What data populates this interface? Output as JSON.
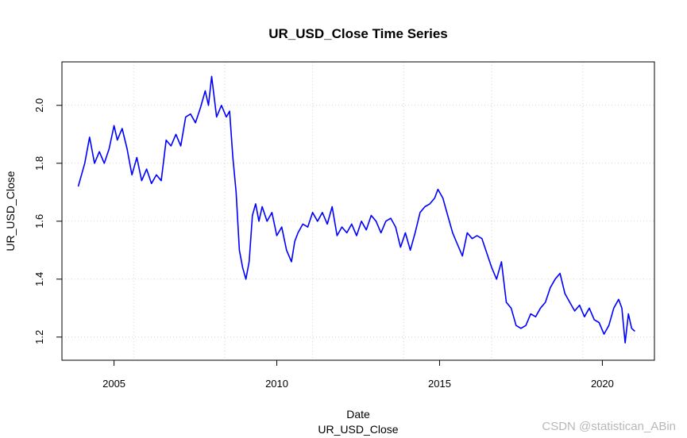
{
  "chart_data": {
    "type": "line",
    "title": "UR_USD_Close Time Series",
    "xlabel": "Date",
    "xlabel_sub": "UR_USD_Close",
    "ylabel": "UR_USD_Close",
    "xlim": [
      2003.4,
      2021.6
    ],
    "ylim": [
      1.12,
      2.15
    ],
    "x_ticks": [
      2005,
      2010,
      2015,
      2020
    ],
    "y_ticks": [
      1.2,
      1.4,
      1.6,
      1.8,
      2.0
    ],
    "x_grid": [
      2005.6,
      2008.4,
      2011.1,
      2013.9,
      2016.6,
      2019.4
    ],
    "y_grid": [
      1.2,
      1.4,
      1.6,
      1.8,
      2.0
    ],
    "grid": true,
    "line_color": "#0000ff",
    "series": [
      {
        "x": [
          2003.9,
          2004.1,
          2004.25,
          2004.4,
          2004.55,
          2004.7,
          2004.85,
          2005.0,
          2005.1,
          2005.25,
          2005.4,
          2005.55,
          2005.7,
          2005.85,
          2006.0,
          2006.15,
          2006.3,
          2006.45,
          2006.6,
          2006.75,
          2006.9,
          2007.05,
          2007.2,
          2007.35,
          2007.5,
          2007.65,
          2007.8,
          2007.9,
          2008.0,
          2008.15,
          2008.3,
          2008.45,
          2008.55,
          2008.65,
          2008.75,
          2008.85,
          2008.95,
          2009.05,
          2009.15,
          2009.25,
          2009.35,
          2009.45,
          2009.55,
          2009.7,
          2009.85,
          2010.0,
          2010.15,
          2010.3,
          2010.45,
          2010.55,
          2010.65,
          2010.8,
          2010.95,
          2011.1,
          2011.25,
          2011.4,
          2011.55,
          2011.7,
          2011.85,
          2012.0,
          2012.15,
          2012.3,
          2012.45,
          2012.6,
          2012.75,
          2012.9,
          2013.05,
          2013.2,
          2013.35,
          2013.5,
          2013.65,
          2013.8,
          2013.95,
          2014.1,
          2014.25,
          2014.4,
          2014.55,
          2014.7,
          2014.85,
          2014.95,
          2015.1,
          2015.25,
          2015.4,
          2015.55,
          2015.7,
          2015.85,
          2016.0,
          2016.15,
          2016.3,
          2016.45,
          2016.6,
          2016.75,
          2016.9,
          2017.05,
          2017.2,
          2017.35,
          2017.5,
          2017.65,
          2017.8,
          2017.95,
          2018.1,
          2018.25,
          2018.4,
          2018.55,
          2018.7,
          2018.85,
          2019.0,
          2019.15,
          2019.3,
          2019.45,
          2019.6,
          2019.75,
          2019.9,
          2020.05,
          2020.2,
          2020.35,
          2020.5,
          2020.6,
          2020.7,
          2020.8,
          2020.9,
          2021.0
        ],
        "y": [
          1.72,
          1.8,
          1.89,
          1.8,
          1.84,
          1.8,
          1.85,
          1.93,
          1.88,
          1.92,
          1.85,
          1.76,
          1.82,
          1.74,
          1.78,
          1.73,
          1.76,
          1.74,
          1.88,
          1.86,
          1.9,
          1.86,
          1.96,
          1.97,
          1.94,
          1.99,
          2.05,
          2.0,
          2.1,
          1.96,
          2.0,
          1.96,
          1.98,
          1.82,
          1.7,
          1.5,
          1.44,
          1.4,
          1.46,
          1.62,
          1.66,
          1.6,
          1.65,
          1.6,
          1.63,
          1.55,
          1.58,
          1.5,
          1.46,
          1.53,
          1.56,
          1.59,
          1.58,
          1.63,
          1.6,
          1.63,
          1.59,
          1.65,
          1.55,
          1.58,
          1.56,
          1.59,
          1.55,
          1.6,
          1.57,
          1.62,
          1.6,
          1.56,
          1.6,
          1.61,
          1.58,
          1.51,
          1.56,
          1.5,
          1.56,
          1.63,
          1.65,
          1.66,
          1.68,
          1.71,
          1.68,
          1.62,
          1.56,
          1.52,
          1.48,
          1.56,
          1.54,
          1.55,
          1.54,
          1.49,
          1.44,
          1.4,
          1.46,
          1.32,
          1.3,
          1.24,
          1.23,
          1.24,
          1.28,
          1.27,
          1.3,
          1.32,
          1.37,
          1.4,
          1.42,
          1.35,
          1.32,
          1.29,
          1.31,
          1.27,
          1.3,
          1.26,
          1.25,
          1.21,
          1.24,
          1.3,
          1.33,
          1.3,
          1.18,
          1.28,
          1.23,
          1.22
        ]
      }
    ]
  },
  "watermark": "CSDN @statistican_ABin"
}
